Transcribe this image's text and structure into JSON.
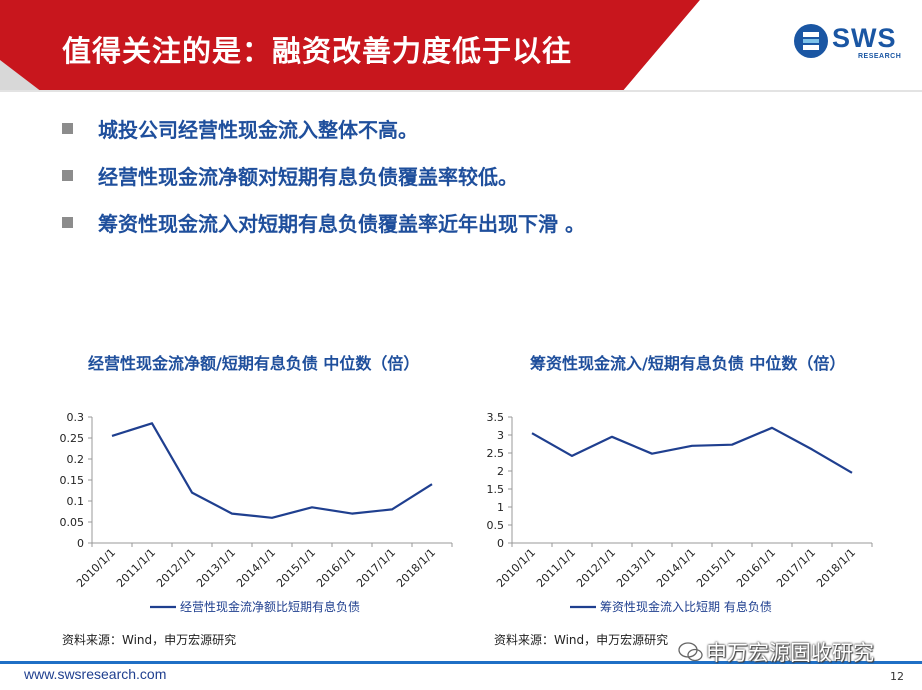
{
  "header": {
    "title": "值得关注的是：融资改善力度低于以往",
    "logo_text": "SWS",
    "logo_sub": "RESEARCH",
    "colors": {
      "banner_red": "#c8161d",
      "banner_light": "#d8d8d8",
      "logo_blue": "#1a56a3"
    }
  },
  "bullets": [
    "城投公司经营性现金流入整体不高。",
    "经营性现金流净额对短期有息负债覆盖率较低。",
    "筹资性现金流入对短期有息负债覆盖率近年出现下滑 。"
  ],
  "chart_data": [
    {
      "type": "line",
      "title": "经营性现金流净额/短期有息负债   中位数（倍）",
      "x": [
        "2010/1/1",
        "2011/1/1",
        "2012/1/1",
        "2013/1/1",
        "2014/1/1",
        "2015/1/1",
        "2016/1/1",
        "2017/1/1",
        "2018/1/1"
      ],
      "yticks": [
        "0",
        "0.05",
        "0.1",
        "0.15",
        "0.2",
        "0.25",
        "0.3"
      ],
      "ylim": [
        0,
        0.3
      ],
      "series": [
        {
          "name": "经营性现金流净额比短期有息负债",
          "color": "#1f3f8f",
          "values": [
            0.255,
            0.285,
            0.12,
            0.07,
            0.06,
            0.085,
            0.07,
            0.08,
            0.14
          ]
        }
      ],
      "legend": "bottom",
      "source": "资料来源：Wind，申万宏源研究"
    },
    {
      "type": "line",
      "title": "筹资性现金流入/短期有息负债  中位数（倍）",
      "x": [
        "2010/1/1",
        "2011/1/1",
        "2012/1/1",
        "2013/1/1",
        "2014/1/1",
        "2015/1/1",
        "2016/1/1",
        "2017/1/1",
        "2018/1/1"
      ],
      "yticks": [
        "0",
        "0.5",
        "1",
        "1.5",
        "2",
        "2.5",
        "3",
        "3.5"
      ],
      "ylim": [
        0,
        3.5
      ],
      "series": [
        {
          "name": "筹资性现金流入比短期 有息负债",
          "color": "#1f3f8f",
          "values": [
            3.05,
            2.42,
            2.95,
            2.48,
            2.7,
            2.73,
            3.2,
            2.6,
            1.95
          ]
        }
      ],
      "legend": "bottom",
      "source": "资料来源：Wind，申万宏源研究"
    }
  ],
  "footer": {
    "url": "www.swsresearch.com",
    "page": "12",
    "watermark": "申万宏源固收研究"
  }
}
